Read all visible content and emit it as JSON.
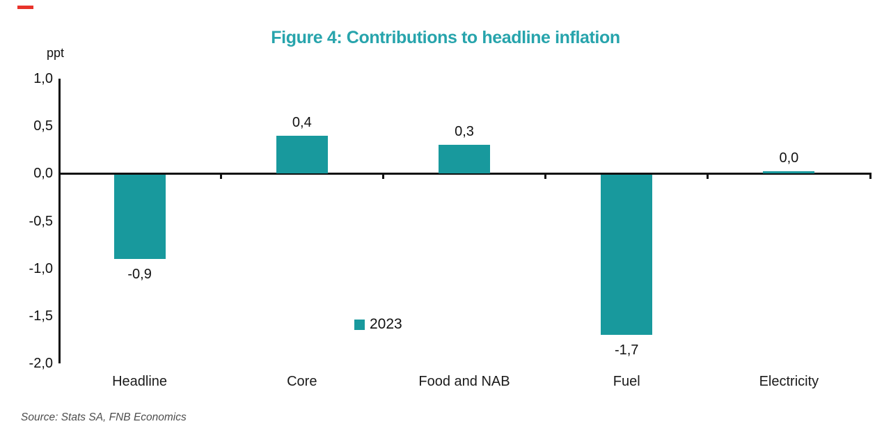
{
  "chart": {
    "title": "Figure 4: Contributions to headline inflation",
    "y_unit": "ppt"
  },
  "legend": {
    "label": "2023"
  },
  "source": "Source: Stats SA, FNB Economics",
  "colors": {
    "bar_teal": "#18999d",
    "title_teal": "#27a4ac",
    "accent_red": "#e8332b",
    "axis_black": "#111111",
    "source_gray": "#4d4d4d"
  },
  "chart_data": {
    "type": "bar",
    "title": "Figure 4: Contributions to headline inflation",
    "categories": [
      "Headline",
      "Core",
      "Food and NAB",
      "Fuel",
      "Electricity"
    ],
    "series": [
      {
        "name": "2023",
        "values": [
          -0.9,
          0.4,
          0.3,
          -1.7,
          0.0
        ]
      }
    ],
    "value_labels": [
      "-0,9",
      "0,4",
      "0,3",
      "-1,7",
      "0,0"
    ],
    "xlabel": "",
    "ylabel": "ppt",
    "ylim": [
      -2.0,
      1.0
    ],
    "ytick_values": [
      1.0,
      0.5,
      0.0,
      -0.5,
      -1.0,
      -1.5,
      -2.0
    ],
    "ytick_labels": [
      "1,0",
      "0,5",
      "0,0",
      "-0,5",
      "-1,0",
      "-1,5",
      "-2,0"
    ],
    "grid": false,
    "legend_position": "bottom-center",
    "decimal_separator": ","
  }
}
